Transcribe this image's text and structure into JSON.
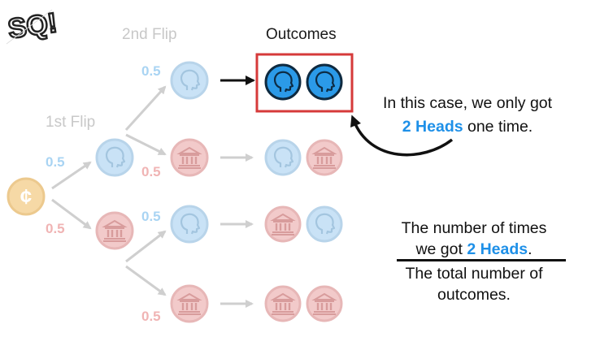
{
  "headers": {
    "first_flip": "1st Flip",
    "second_flip": "2nd Flip",
    "outcomes": "Outcomes"
  },
  "probabilities": {
    "first_heads": "0.5",
    "first_tails": "0.5",
    "second_hh": "0.5",
    "second_ht": "0.5",
    "second_th": "0.5",
    "second_tt": "0.5"
  },
  "callout": {
    "line1": "In this case, we only got",
    "highlight": "2 Heads",
    "line2_rest": " one time."
  },
  "fraction": {
    "numerator_line1": "The number of times",
    "numerator_pre": "we got ",
    "numerator_highlight": "2 Heads",
    "numerator_post": ".",
    "denominator_line1": "The total number of",
    "denominator_line2": "outcomes."
  },
  "colors": {
    "heads_faded": "#c9e2f6",
    "heads_strong": "#2b9ae8",
    "tails_faded": "#f2caca",
    "coin_faded": "#f6d9a6",
    "highlight_box": "#d63a3a",
    "accent_text": "#1e90e8"
  },
  "icons": [
    "coin-icon",
    "heads-icon",
    "tails-icon",
    "logo"
  ]
}
